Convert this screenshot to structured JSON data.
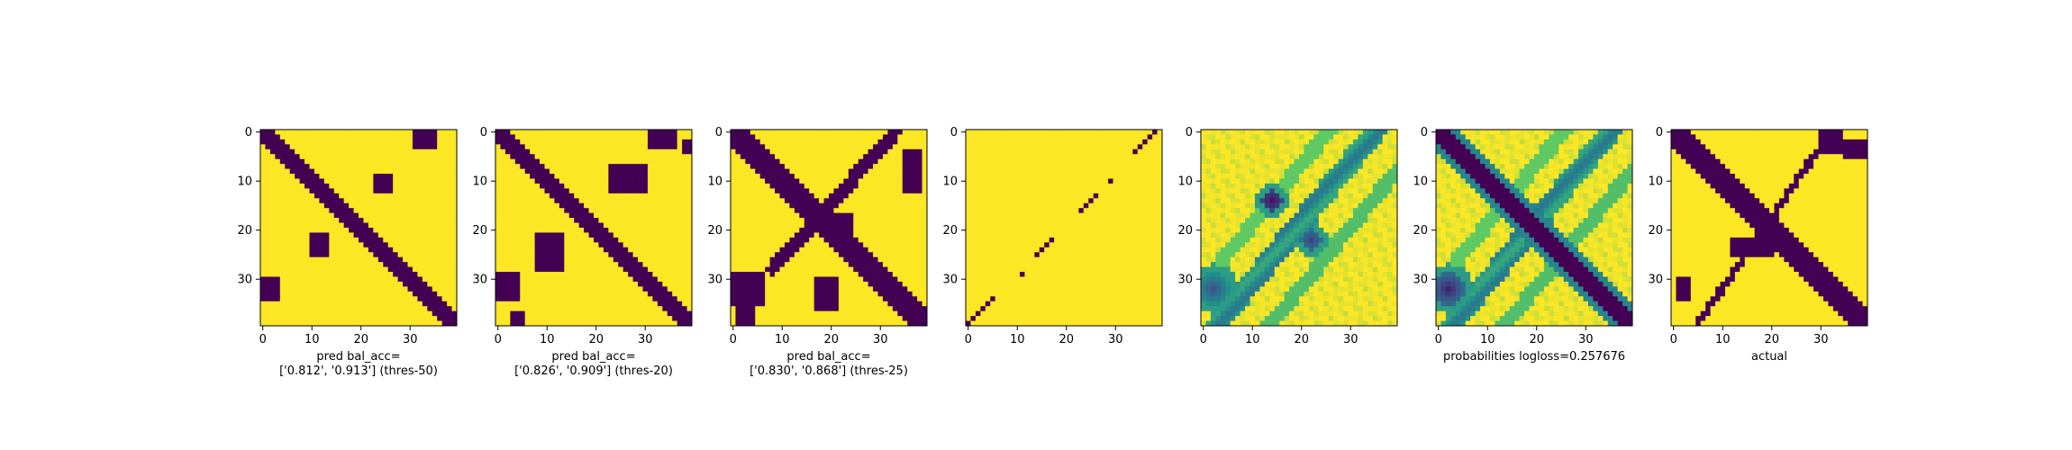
{
  "figure": {
    "background": "#ffffff",
    "colormap": "viridis",
    "colors": {
      "low": "#440154",
      "mid": "#21918c",
      "high": "#fde725"
    }
  },
  "chart_data": [
    {
      "type": "heatmap",
      "panel": 1,
      "matrix_size": 40,
      "xticks": [
        "0",
        "10",
        "20",
        "30"
      ],
      "yticks": [
        "0",
        "10",
        "20",
        "30"
      ],
      "title": "",
      "xlabel_lines": [
        "pred bal_acc=",
        "['0.812', '0.913'] (thres-50)"
      ],
      "values_desc": "binary 0/1",
      "value_range": [
        0,
        1
      ],
      "diagonal_band": {
        "from": [
          0,
          0
        ],
        "to": [
          39,
          39
        ],
        "half_width": 2,
        "value": 0
      },
      "blobs": [
        {
          "x": [
            31,
            35
          ],
          "y": [
            0,
            3
          ],
          "value": 0
        },
        {
          "x": [
            23,
            26
          ],
          "y": [
            9,
            12
          ],
          "value": 0
        },
        {
          "x": [
            10,
            13
          ],
          "y": [
            21,
            25
          ],
          "value": 0
        },
        {
          "x": [
            0,
            3
          ],
          "y": [
            30,
            34
          ],
          "value": 0
        }
      ]
    },
    {
      "type": "heatmap",
      "panel": 2,
      "matrix_size": 40,
      "xticks": [
        "0",
        "10",
        "20",
        "30"
      ],
      "yticks": [
        "0",
        "10",
        "20",
        "30"
      ],
      "title": "",
      "xlabel_lines": [
        "pred bal_acc=",
        "['0.826', '0.909'] (thres-20)"
      ],
      "values_desc": "binary 0/1",
      "value_range": [
        0,
        1
      ],
      "diagonal_band": {
        "from": [
          0,
          0
        ],
        "to": [
          39,
          39
        ],
        "half_width": 2,
        "value": 0
      },
      "blobs": [
        {
          "x": [
            31,
            36
          ],
          "y": [
            0,
            3
          ],
          "value": 0
        },
        {
          "x": [
            23,
            30
          ],
          "y": [
            7,
            12
          ],
          "value": 0
        },
        {
          "x": [
            38,
            39
          ],
          "y": [
            2,
            4
          ],
          "value": 0
        },
        {
          "x": [
            8,
            13
          ],
          "y": [
            21,
            28
          ],
          "value": 0
        },
        {
          "x": [
            0,
            4
          ],
          "y": [
            29,
            34
          ],
          "value": 0
        },
        {
          "x": [
            3,
            5
          ],
          "y": [
            37,
            39
          ],
          "value": 0
        }
      ]
    },
    {
      "type": "heatmap",
      "panel": 3,
      "matrix_size": 40,
      "xticks": [
        "0",
        "10",
        "20",
        "30"
      ],
      "yticks": [
        "0",
        "10",
        "20",
        "30"
      ],
      "title": "",
      "xlabel_lines": [
        "pred bal_acc=",
        "['0.830', '0.868'] (thres-25)"
      ],
      "values_desc": "binary 0/1",
      "value_range": [
        0,
        1
      ],
      "diagonal_band": {
        "from": [
          0,
          0
        ],
        "to": [
          39,
          39
        ],
        "half_width": 3,
        "value": 0
      },
      "anti_band": {
        "from": [
          33,
          0
        ],
        "to": [
          8,
          28
        ],
        "half_width": 2,
        "value": 0
      },
      "blobs": [
        {
          "x": [
            21,
            24
          ],
          "y": [
            17,
            24
          ],
          "value": 0
        },
        {
          "x": [
            35,
            38
          ],
          "y": [
            4,
            12
          ],
          "value": 0
        },
        {
          "x": [
            0,
            6
          ],
          "y": [
            29,
            35
          ],
          "value": 0
        },
        {
          "x": [
            17,
            21
          ],
          "y": [
            30,
            36
          ],
          "value": 0
        },
        {
          "x": [
            1,
            4
          ],
          "y": [
            35,
            39
          ],
          "value": 0
        }
      ]
    },
    {
      "type": "heatmap",
      "panel": 4,
      "matrix_size": 40,
      "xticks": [
        "0",
        "10",
        "20",
        "30"
      ],
      "yticks": [
        "0",
        "10",
        "20",
        "30"
      ],
      "title": "",
      "xlabel_lines": [],
      "values_desc": "binary 0/1, sparse anti-diagonal",
      "value_range": [
        0,
        1
      ],
      "anti_diagonal_points": [
        [
          38,
          0
        ],
        [
          37,
          1
        ],
        [
          36,
          2
        ],
        [
          35,
          3
        ],
        [
          34,
          4
        ],
        [
          29,
          10
        ],
        [
          26,
          13
        ],
        [
          25,
          14
        ],
        [
          24,
          15
        ],
        [
          23,
          16
        ],
        [
          17,
          22
        ],
        [
          16,
          23
        ],
        [
          15,
          24
        ],
        [
          14,
          25
        ],
        [
          11,
          29
        ],
        [
          5,
          34
        ],
        [
          4,
          35
        ],
        [
          3,
          36
        ],
        [
          2,
          37
        ],
        [
          1,
          38
        ],
        [
          0,
          39
        ]
      ]
    },
    {
      "type": "heatmap",
      "panel": 5,
      "matrix_size": 40,
      "xticks": [
        "0",
        "10",
        "20",
        "30"
      ],
      "yticks": [
        "0",
        "10",
        "20",
        "30"
      ],
      "title": "",
      "xlabel_lines": [],
      "values_desc": "continuous 0..1",
      "value_range": [
        0,
        1
      ],
      "features": [
        {
          "kind": "anti_band",
          "from": [
            35,
            0
          ],
          "to": [
            3,
            39
          ],
          "strength": 0.5
        },
        {
          "kind": "spot",
          "center": [
            14,
            14
          ],
          "value": 0.05
        },
        {
          "kind": "spot",
          "center": [
            22,
            22
          ],
          "value": 0.2
        },
        {
          "kind": "blob",
          "center": [
            2,
            32
          ],
          "value": 0.25
        }
      ]
    },
    {
      "type": "heatmap",
      "panel": 6,
      "matrix_size": 40,
      "xticks": [
        "0",
        "10",
        "20",
        "30"
      ],
      "yticks": [
        "0",
        "10",
        "20",
        "30"
      ],
      "title": "",
      "xlabel_lines": [
        "probabilities logloss=0.257676"
      ],
      "values_desc": "continuous 0..1",
      "value_range": [
        0,
        1
      ],
      "features": [
        {
          "kind": "diagonal_band",
          "from": [
            0,
            0
          ],
          "to": [
            39,
            39
          ],
          "value": 0.0
        },
        {
          "kind": "anti_band",
          "from": [
            35,
            0
          ],
          "to": [
            3,
            39
          ],
          "strength": 0.5
        },
        {
          "kind": "blob",
          "center": [
            2,
            32
          ],
          "value": 0.1
        }
      ]
    },
    {
      "type": "heatmap",
      "panel": 7,
      "matrix_size": 40,
      "xticks": [
        "0",
        "10",
        "20",
        "30"
      ],
      "yticks": [
        "0",
        "10",
        "20",
        "30"
      ],
      "title": "",
      "xlabel_lines": [
        "actual"
      ],
      "values_desc": "binary 0/1",
      "value_range": [
        0,
        1
      ],
      "diagonal_band": {
        "from": [
          0,
          0
        ],
        "to": [
          39,
          39
        ],
        "half_width": 3,
        "value": 0
      },
      "anti_band": {
        "from": [
          32,
          0
        ],
        "to": [
          5,
          39
        ],
        "half_width": 1,
        "value": 0
      },
      "blobs": [
        {
          "x": [
            30,
            34
          ],
          "y": [
            0,
            4
          ],
          "value": 0
        },
        {
          "x": [
            35,
            39
          ],
          "y": [
            2,
            5
          ],
          "value": 0
        },
        {
          "x": [
            12,
            20
          ],
          "y": [
            22,
            25
          ],
          "value": 0
        },
        {
          "x": [
            1,
            3
          ],
          "y": [
            30,
            34
          ],
          "value": 0
        }
      ]
    }
  ]
}
